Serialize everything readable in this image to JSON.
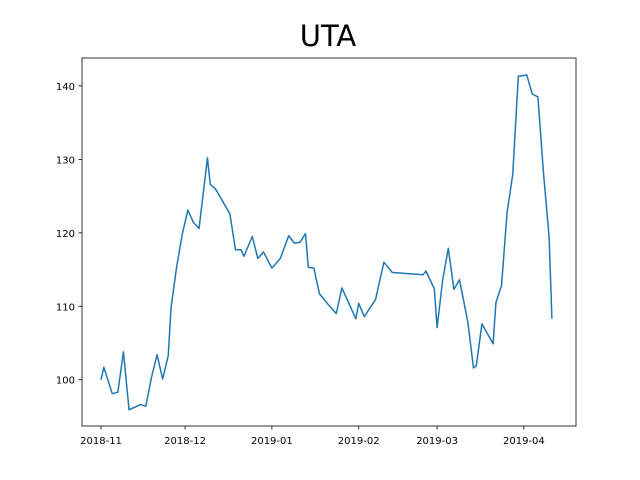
{
  "chart_data": {
    "type": "line",
    "title": "UTA",
    "x": [
      0,
      1,
      4,
      6,
      8,
      10,
      14,
      16,
      18,
      20,
      22,
      24,
      25,
      27,
      29,
      31,
      33,
      35,
      38,
      39,
      41,
      46,
      48,
      50,
      51,
      54,
      56,
      58,
      61,
      64,
      67,
      69,
      71,
      73,
      74,
      76,
      78,
      81,
      84,
      86,
      91,
      92,
      94,
      98,
      101,
      104,
      115,
      116,
      119,
      120,
      122,
      124,
      126,
      128,
      131,
      133,
      134,
      136,
      140,
      141,
      143,
      145,
      147,
      149,
      152,
      154,
      156,
      158,
      160,
      161
    ],
    "values": [
      100.0,
      101.7,
      98.1,
      98.3,
      103.8,
      95.9,
      96.6,
      96.4,
      100.3,
      103.4,
      100.1,
      103.3,
      109.8,
      115.4,
      119.8,
      123.1,
      121.4,
      120.6,
      130.2,
      126.6,
      125.9,
      122.6,
      117.7,
      117.7,
      116.8,
      119.5,
      116.5,
      117.4,
      115.2,
      116.5,
      119.6,
      118.6,
      118.7,
      119.9,
      115.3,
      115.2,
      111.7,
      110.3,
      109.0,
      112.5,
      108.3,
      110.4,
      108.6,
      110.9,
      116.0,
      114.6,
      114.3,
      114.8,
      112.4,
      107.1,
      113.6,
      117.9,
      112.3,
      113.6,
      107.8,
      101.6,
      101.9,
      107.6,
      104.9,
      110.5,
      112.8,
      122.8,
      127.9,
      141.3,
      141.5,
      138.9,
      138.5,
      128.1,
      119.4,
      108.3
    ],
    "color": "#1f77b4",
    "xlim": [
      -6.8,
      169.6
    ],
    "xticks": [
      {
        "value": 0,
        "label": "2018-11"
      },
      {
        "value": 30,
        "label": "2018-12"
      },
      {
        "value": 61,
        "label": "2019-01"
      },
      {
        "value": 92,
        "label": "2019-02"
      },
      {
        "value": 120,
        "label": "2019-03"
      },
      {
        "value": 151,
        "label": "2019-04"
      }
    ],
    "ylim": [
      93.7,
      143.8
    ],
    "yticks": [
      100,
      110,
      120,
      130,
      140
    ]
  }
}
